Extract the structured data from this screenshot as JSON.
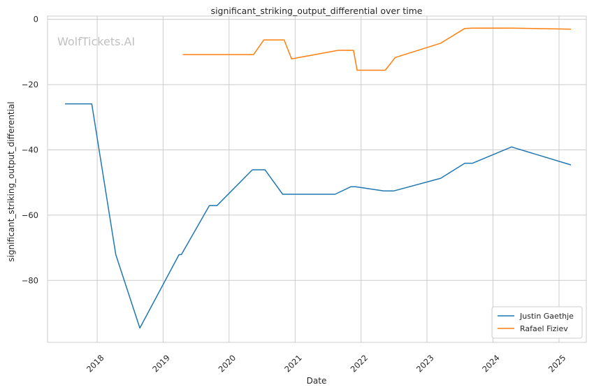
{
  "chart_data": {
    "type": "line",
    "title": "significant_striking_output_differential over time",
    "xlabel": "Date",
    "ylabel": "significant_striking_output_differential",
    "watermark": "WolfTickets.AI",
    "xlim": [
      "2017-04-01",
      "2025-06-01"
    ],
    "ylim": [
      -99,
      1
    ],
    "x_ticks": [
      "2018-01-01",
      "2019-01-01",
      "2020-01-01",
      "2021-01-01",
      "2022-01-01",
      "2023-01-01",
      "2024-01-01",
      "2025-01-01"
    ],
    "x_tick_labels": [
      "2018",
      "2019",
      "2020",
      "2021",
      "2022",
      "2023",
      "2024",
      "2025"
    ],
    "y_ticks": [
      0,
      -20,
      -40,
      -60,
      -80
    ],
    "y_tick_labels": [
      "0",
      "−20",
      "−40",
      "−60",
      "−80"
    ],
    "grid": true,
    "legend_position": "lower-right",
    "series": [
      {
        "name": "Justin Gaethje",
        "color": "#1f77b4",
        "points": [
          [
            "2017-07-07",
            -25.9
          ],
          [
            "2017-12-02",
            -25.9
          ],
          [
            "2018-04-14",
            -72.1
          ],
          [
            "2018-08-25",
            -94.6
          ],
          [
            "2019-03-30",
            -72.1
          ],
          [
            "2019-04-12",
            -72.1
          ],
          [
            "2019-09-14",
            -57.1
          ],
          [
            "2019-10-26",
            -57.1
          ],
          [
            "2020-05-09",
            -46.1
          ],
          [
            "2020-07-18",
            -46.1
          ],
          [
            "2020-10-24",
            -53.6
          ],
          [
            "2021-08-10",
            -53.6
          ],
          [
            "2021-11-06",
            -51.3
          ],
          [
            "2021-12-01",
            -51.3
          ],
          [
            "2022-05-07",
            -52.6
          ],
          [
            "2022-06-30",
            -52.6
          ],
          [
            "2023-03-18",
            -48.7
          ],
          [
            "2023-07-29",
            -44.1
          ],
          [
            "2023-09-10",
            -44.1
          ],
          [
            "2024-04-13",
            -39.1
          ],
          [
            "2025-03-08",
            -44.6
          ]
        ]
      },
      {
        "name": "Rafael Fiziev",
        "color": "#ff7f0e",
        "points": [
          [
            "2019-04-20",
            -10.8
          ],
          [
            "2020-05-16",
            -10.8
          ],
          [
            "2020-07-12",
            -6.3
          ],
          [
            "2020-11-01",
            -6.3
          ],
          [
            "2020-12-12",
            -12.1
          ],
          [
            "2021-08-28",
            -9.5
          ],
          [
            "2021-11-20",
            -9.5
          ],
          [
            "2021-12-10",
            -15.6
          ],
          [
            "2022-05-15",
            -15.6
          ],
          [
            "2022-07-09",
            -11.7
          ],
          [
            "2023-03-18",
            -7.3
          ],
          [
            "2023-07-29",
            -2.8
          ],
          [
            "2023-09-10",
            -2.7
          ],
          [
            "2024-04-13",
            -2.7
          ],
          [
            "2025-03-08",
            -3.0
          ]
        ]
      }
    ]
  }
}
